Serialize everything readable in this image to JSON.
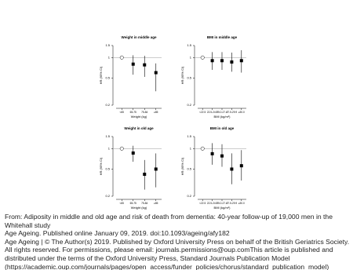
{
  "chart_data": [
    {
      "type": "forest",
      "title": "Weight in middle age",
      "xlabel": "Weight (kg)",
      "ylabel": "HR (95% CI)",
      "categories": [
        "<65",
        "65-75",
        "75-84",
        "≥85"
      ],
      "values": [
        1,
        0.8,
        0.78,
        0.6
      ],
      "lower": [
        null,
        0.56,
        0.52,
        0.32
      ],
      "upper": [
        null,
        1.08,
        1.06,
        0.82
      ],
      "ylim": [
        0.2,
        1.5
      ],
      "yticks": [
        0.2,
        0.5,
        1,
        1.5
      ],
      "log_y": true,
      "refline": 1,
      "color": "#000000"
    },
    {
      "type": "forest",
      "title": "BMI in middle age",
      "xlabel": "BMI (kg/m²)",
      "ylabel": "HR (95% CI)",
      "categories": [
        "<22.5",
        "22.5-24.9",
        "25.0-27.4",
        "27.5-29.9",
        "≥30.0"
      ],
      "values": [
        1,
        0.9,
        0.9,
        0.86,
        0.9
      ],
      "lower": [
        null,
        0.66,
        0.66,
        0.62,
        0.6
      ],
      "upper": [
        null,
        1.2,
        1.2,
        1.18,
        1.28
      ],
      "ylim": [
        0.2,
        1.5
      ],
      "yticks": [
        0.2,
        0.5,
        1,
        1.5
      ],
      "log_y": true,
      "refline": 1,
      "color": "#000000"
    },
    {
      "type": "forest",
      "title": "Weight in old age",
      "xlabel": "Weight (kg)",
      "ylabel": "HR (95% CI)",
      "categories": [
        "<65",
        "65-75",
        "75-84",
        "≥85"
      ],
      "values": [
        1,
        0.86,
        0.42,
        0.5
      ],
      "lower": [
        null,
        0.64,
        0.25,
        0.27
      ],
      "upper": [
        null,
        1.1,
        0.68,
        0.85
      ],
      "ylim": [
        0.2,
        1.5
      ],
      "yticks": [
        0.2,
        0.5,
        1,
        1.5
      ],
      "log_y": true,
      "refline": 1,
      "color": "#000000"
    },
    {
      "type": "forest",
      "title": "BMI in old age",
      "xlabel": "BMI (kg/m²)",
      "ylabel": "HR (95% CI)",
      "categories": [
        "<22.5",
        "22.5-24.9",
        "25.0-27.4",
        "27.5-29.9",
        "≥30.0"
      ],
      "values": [
        1,
        0.84,
        0.78,
        0.5,
        0.56
      ],
      "lower": [
        null,
        0.58,
        0.54,
        0.3,
        0.34
      ],
      "upper": [
        null,
        1.2,
        1.16,
        0.85,
        0.95
      ],
      "ylim": [
        0.2,
        1.5
      ],
      "yticks": [
        0.2,
        0.5,
        1,
        1.5
      ],
      "log_y": true,
      "refline": 1,
      "color": "#000000"
    }
  ],
  "caption": {
    "from": "From: Adiposity in middle and old age and risk of death from dementia: 40-year follow-up of 19,000 men in the Whitehall study",
    "citation": "Age Ageing. Published online  January 09, 2019. doi:10.1093/ageing/afy182",
    "copyright": "Age Ageing | © The Author(s) 2019. Published by Oxford University Press on behalf of the British Geriatrics Society. All rights reserved. For permissions, please email: journals.permissions@oup.comThis article is published and distributed under the terms of the Oxford University Press, Standard Journals Publication Model",
    "url": "(https://academic.oup.com/journals/pages/open_access/funder_policies/chorus/standard_publication_model)"
  }
}
